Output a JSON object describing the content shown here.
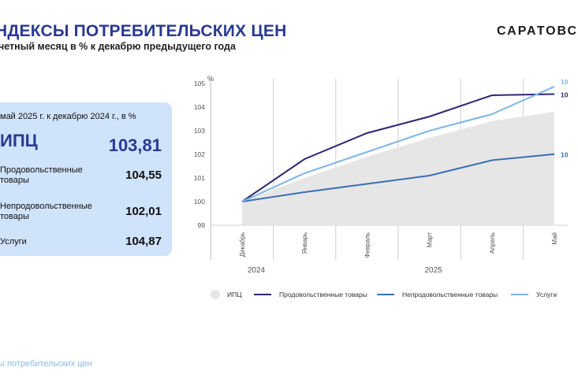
{
  "header": {
    "title": "НДЕКСЫ ПОТРЕБИТЕЛЬСКИХ ЦЕН",
    "subtitle": "четный месяц в % к декабрю предыдущего года",
    "brand": "САРАТОВС"
  },
  "card": {
    "heading": "май 2025 г. к декабрю 2024 г., в %",
    "rows": [
      {
        "label": "ИПЦ",
        "value": "103,81"
      },
      {
        "label": "Продовольственные товары",
        "value": "104,55"
      },
      {
        "label": "Непродовольственные товары",
        "value": "102,01"
      },
      {
        "label": "Услуги",
        "value": "104,87"
      }
    ]
  },
  "footer": "ы потребительских цен",
  "colors": {
    "accent": "#2a3990",
    "card_bg": "#cfe3fb",
    "cpi_area": "#e6e6e6",
    "food": "#2b2872",
    "nonfood": "#3a6fb5",
    "services": "#7fb5e6"
  },
  "chart_data": {
    "type": "line",
    "ylabel": "%",
    "ylim": [
      99,
      105
    ],
    "yticks": [
      "99",
      "100",
      "101",
      "102",
      "103",
      "104",
      "105"
    ],
    "categories": [
      "Декабрь",
      "Январь",
      "Февраль",
      "Март",
      "Апрель",
      "Май"
    ],
    "year_groups": [
      {
        "label": "2024",
        "from": 0,
        "to": 0
      },
      {
        "label": "2025",
        "from": 1,
        "to": 5
      }
    ],
    "series": [
      {
        "name": "ИПЦ",
        "kind": "area",
        "color": "#e6e6e6",
        "values": [
          100,
          101.0,
          101.9,
          102.7,
          103.4,
          103.81
        ]
      },
      {
        "name": "Продовольственные товары",
        "kind": "line",
        "color": "#2b2872",
        "values": [
          100,
          101.8,
          102.9,
          103.6,
          104.5,
          104.55
        ],
        "end_label": "10"
      },
      {
        "name": "Непродовольственные товары",
        "kind": "line",
        "color": "#3a6fb5",
        "values": [
          100,
          100.4,
          100.75,
          101.1,
          101.75,
          102.01
        ],
        "end_label": "10"
      },
      {
        "name": "Услуги",
        "kind": "line",
        "color": "#7fb5e6",
        "values": [
          100,
          101.2,
          102.1,
          103.0,
          103.7,
          104.87
        ],
        "end_label": "10"
      }
    ]
  }
}
